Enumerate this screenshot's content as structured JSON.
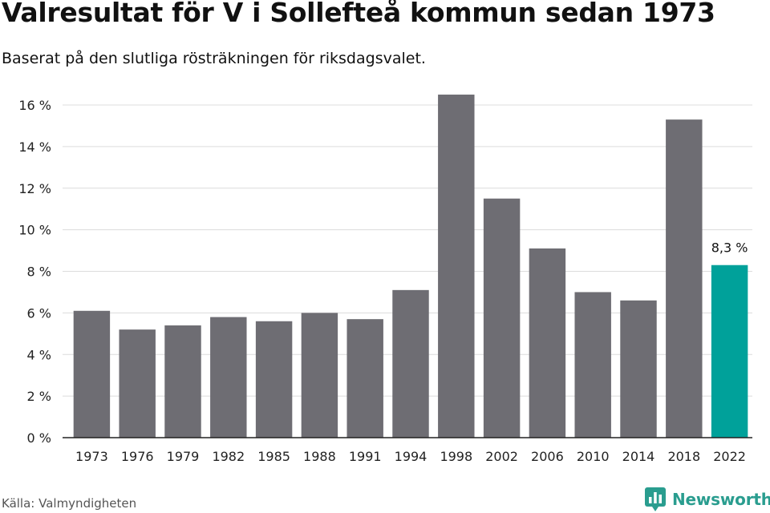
{
  "title": "Valresultat för V i Sollefteå kommun sedan 1973",
  "subtitle": "Baserat på den slutliga rösträkningen för riksdagsvalet.",
  "source": "Källa: Valmyndigheten",
  "brand": {
    "name": "Newsworthy",
    "logo_icon": "newsworthy-logo-icon",
    "color": "#2a9d8f"
  },
  "chart_data": {
    "type": "bar",
    "categories": [
      "1973",
      "1976",
      "1979",
      "1982",
      "1985",
      "1988",
      "1991",
      "1994",
      "1998",
      "2002",
      "2006",
      "2010",
      "2014",
      "2018",
      "2022"
    ],
    "values": [
      6.1,
      5.2,
      5.4,
      5.8,
      5.6,
      6.0,
      5.7,
      7.1,
      16.5,
      11.5,
      9.1,
      7.0,
      6.6,
      15.3,
      8.3
    ],
    "ylim": [
      0,
      16
    ],
    "yticks": [
      0,
      2,
      4,
      6,
      8,
      10,
      12,
      14,
      16
    ],
    "ytick_labels": [
      "0 %",
      "2 %",
      "4 %",
      "6 %",
      "8 %",
      "10 %",
      "12 %",
      "14 %",
      "16 %"
    ],
    "grid": true,
    "bar_color": "#6e6d73",
    "highlight_color": "#00a19a",
    "highlight_index": 14,
    "annotation": {
      "index": 14,
      "text": "8,3 %"
    }
  }
}
